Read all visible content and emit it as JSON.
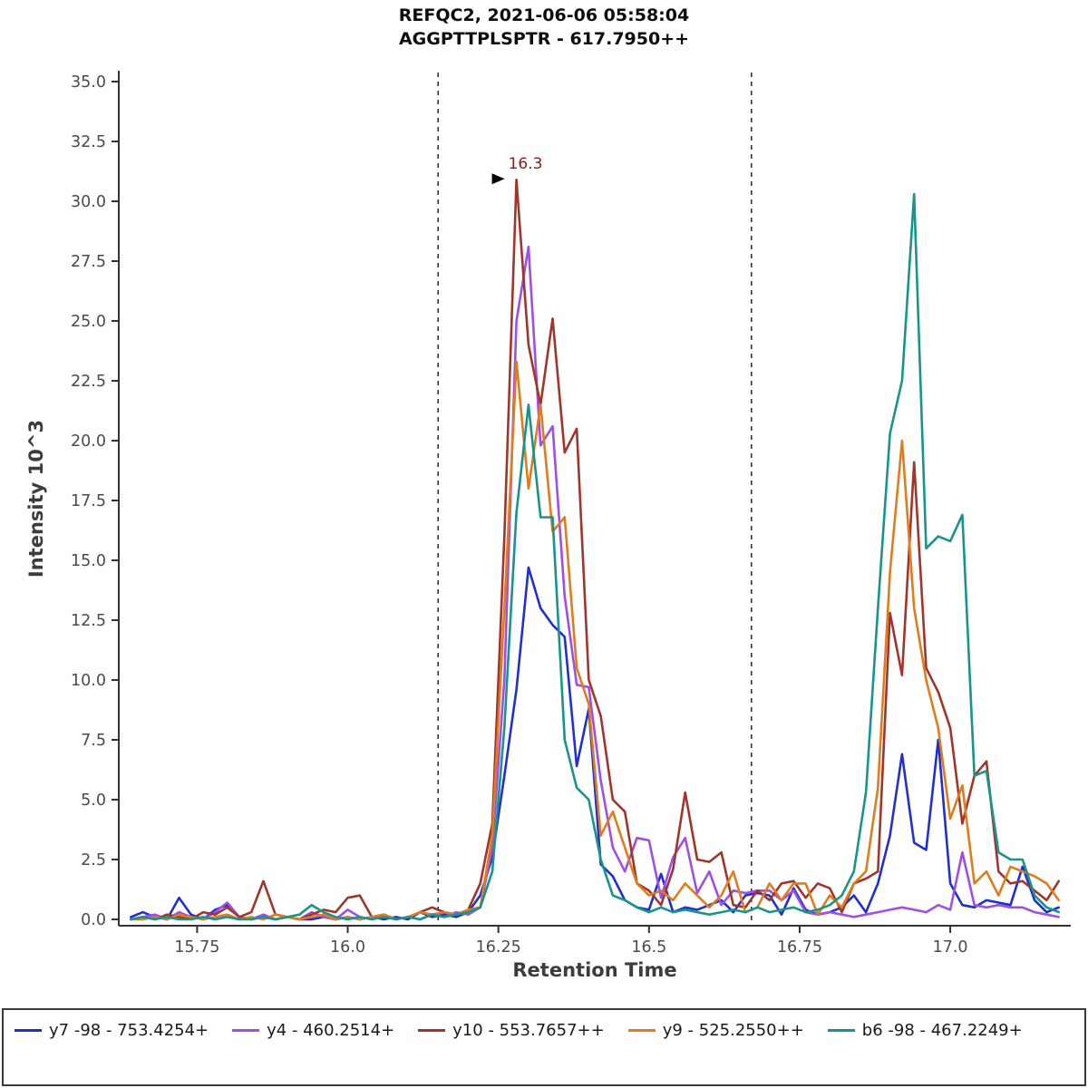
{
  "chart_data": {
    "type": "line",
    "title": "REFQC2, 2021-06-06 05:58:04",
    "subtitle": "AGGPTTPLSPTR - 617.7950++",
    "xlabel": "Retention Time",
    "ylabel": "Intensity 10^3",
    "xlim": [
      15.62,
      17.2
    ],
    "ylim": [
      0,
      35.45
    ],
    "x_ticks": [
      15.75,
      16.0,
      16.25,
      16.5,
      16.75,
      17.0
    ],
    "x_tick_labels": [
      "15.75",
      "16.0",
      "16.25",
      "16.5",
      "16.75",
      "17.0"
    ],
    "y_ticks": [
      0,
      2.5,
      5,
      7.5,
      10,
      12.5,
      15,
      17.5,
      20,
      22.5,
      25,
      27.5,
      30,
      32.5,
      35
    ],
    "boundaries": [
      16.15,
      16.67
    ],
    "annotation": {
      "label": "16.3",
      "x": 16.28,
      "y": 30.9,
      "color": "#8b1a1a"
    },
    "colors": {
      "axis": "#333333",
      "tick_label": "#4b4b4b",
      "boundary": "#333333"
    },
    "x": [
      15.64,
      15.66,
      15.68,
      15.7,
      15.72,
      15.74,
      15.76,
      15.78,
      15.8,
      15.82,
      15.84,
      15.86,
      15.88,
      15.9,
      15.92,
      15.94,
      15.96,
      15.98,
      16.0,
      16.02,
      16.04,
      16.06,
      16.08,
      16.1,
      16.12,
      16.14,
      16.16,
      16.18,
      16.2,
      16.22,
      16.24,
      16.26,
      16.28,
      16.3,
      16.32,
      16.34,
      16.36,
      16.38,
      16.4,
      16.42,
      16.44,
      16.46,
      16.48,
      16.5,
      16.52,
      16.54,
      16.56,
      16.58,
      16.6,
      16.62,
      16.64,
      16.66,
      16.68,
      16.7,
      16.72,
      16.74,
      16.76,
      16.78,
      16.8,
      16.82,
      16.84,
      16.86,
      16.88,
      16.9,
      16.92,
      16.94,
      16.96,
      16.98,
      17.0,
      17.02,
      17.04,
      17.06,
      17.08,
      17.1,
      17.12,
      17.14,
      17.16,
      17.18
    ],
    "series": [
      {
        "id": "y7",
        "label": "y7 -98 - 753.4254+",
        "color": "#2030d0",
        "values": [
          0.1,
          0.3,
          0.1,
          0,
          0.9,
          0.2,
          0,
          0.4,
          0.6,
          0.1,
          0,
          0.1,
          0,
          0.1,
          0,
          0,
          0.1,
          0,
          0.1,
          0,
          0.1,
          0,
          0.1,
          0,
          0.3,
          0.1,
          0.2,
          0.1,
          0.3,
          1,
          2.6,
          6,
          9.6,
          14.7,
          13,
          12.3,
          11.8,
          6.4,
          8.8,
          2.3,
          1.8,
          0.8,
          0.5,
          0.4,
          1.9,
          0.3,
          0.5,
          0.4,
          0.6,
          0.8,
          0.3,
          1,
          1.1,
          1,
          0.2,
          1.3,
          0.4,
          0.2,
          0.3,
          0.5,
          1,
          0.3,
          1.5,
          3.5,
          6.9,
          3.2,
          2.9,
          7.5,
          1.5,
          0.6,
          0.5,
          0.8,
          0.7,
          0.6,
          2.2,
          0.8,
          0.3,
          0.5
        ]
      },
      {
        "id": "y4",
        "label": "y4 - 460.2514+",
        "color": "#9d4fe8",
        "values": [
          0,
          0.1,
          0.2,
          0,
          0.3,
          0.1,
          0,
          0.3,
          0.7,
          0.1,
          0,
          0.2,
          0,
          0.1,
          0,
          0.3,
          0.1,
          0,
          0.4,
          0.1,
          0,
          0.2,
          0,
          0.1,
          0,
          0.2,
          0.1,
          0.3,
          0.2,
          0.5,
          3,
          10,
          25,
          28.1,
          19.8,
          20.6,
          13.5,
          9.8,
          9.7,
          5.8,
          3,
          2,
          3.4,
          3.3,
          0.9,
          2.6,
          3.4,
          1.1,
          2,
          0.6,
          1.2,
          1.1,
          1.2,
          1.2,
          0.8,
          1.2,
          0.3,
          0.2,
          0.3,
          0.2,
          0.1,
          0.2,
          0.3,
          0.4,
          0.5,
          0.4,
          0.3,
          0.6,
          0.4,
          2.8,
          0.6,
          0.5,
          0.6,
          0.5,
          0.5,
          0.3,
          0.2,
          0.1
        ]
      },
      {
        "id": "y10",
        "label": "y10 - 553.7657++",
        "color": "#a1352c",
        "values": [
          0,
          0.1,
          0,
          0.2,
          0.1,
          0,
          0.3,
          0.2,
          0.5,
          0.1,
          0.3,
          1.6,
          0.2,
          0.1,
          0,
          0.2,
          0.4,
          0.3,
          0.9,
          1,
          0.1,
          0.2,
          0,
          0.1,
          0.3,
          0.5,
          0.3,
          0.2,
          0.4,
          1.5,
          4,
          16,
          30.9,
          24,
          21.5,
          25.1,
          19.5,
          20.5,
          10,
          8.5,
          5,
          4.5,
          1.5,
          1.2,
          0.6,
          2.1,
          5.3,
          2.5,
          2.4,
          2.8,
          0.6,
          0.5,
          1.2,
          0.8,
          1.5,
          1.6,
          0.9,
          1.5,
          1.3,
          0.3,
          1.5,
          1.7,
          2,
          12.8,
          10.2,
          19.1,
          10.5,
          9.5,
          8,
          4,
          6,
          6.6,
          2,
          1.5,
          1.6,
          1.2,
          0.8,
          1.6
        ]
      },
      {
        "id": "y9",
        "label": "y9 - 525.2550++",
        "color": "#df7d1e",
        "values": [
          0,
          0,
          0.1,
          0,
          0.2,
          0.1,
          0,
          0.1,
          0.2,
          0,
          0.1,
          0,
          0.2,
          0.1,
          0,
          0.1,
          0.2,
          0,
          0.1,
          0,
          0.1,
          0.2,
          0,
          0.1,
          0.3,
          0.2,
          0.3,
          0.2,
          0.4,
          0.5,
          3.5,
          13,
          23.3,
          18,
          21.5,
          16.2,
          16.8,
          10.5,
          9,
          3.5,
          4.5,
          3,
          1.5,
          1,
          1.2,
          0.8,
          1.5,
          1,
          0.5,
          1,
          2,
          0.3,
          0.5,
          1.5,
          0.8,
          1.5,
          1.5,
          0.2,
          1,
          0.5,
          1.5,
          2,
          5.5,
          14.5,
          20,
          13,
          10,
          8,
          4.2,
          5.6,
          1.5,
          2,
          1,
          2.2,
          2,
          1.8,
          1.5,
          0.8
        ]
      },
      {
        "id": "b6",
        "label": "b6 -98 - 467.2249+",
        "color": "#17958a",
        "values": [
          0,
          0.1,
          0,
          0.1,
          0,
          0,
          0.1,
          0,
          0.1,
          0,
          0,
          0.1,
          0,
          0.1,
          0.2,
          0.6,
          0.3,
          0.1,
          0,
          0.1,
          0,
          0.1,
          0,
          0.1,
          0,
          0.2,
          0.1,
          0.2,
          0.3,
          0.5,
          2,
          8,
          17,
          21.5,
          16.8,
          16.8,
          7.5,
          5.5,
          5,
          2.5,
          1,
          0.8,
          0.5,
          0.3,
          0.5,
          0.3,
          0.4,
          0.3,
          0.2,
          0.3,
          0.4,
          0.3,
          0.5,
          0.3,
          0.4,
          0.5,
          0.3,
          0.4,
          0.6,
          1,
          2,
          5.3,
          13,
          20.3,
          22.5,
          30.3,
          15.5,
          16,
          15.8,
          16.9,
          6,
          6.2,
          2.8,
          2.5,
          2.5,
          1,
          0.5,
          0.3
        ]
      }
    ]
  }
}
